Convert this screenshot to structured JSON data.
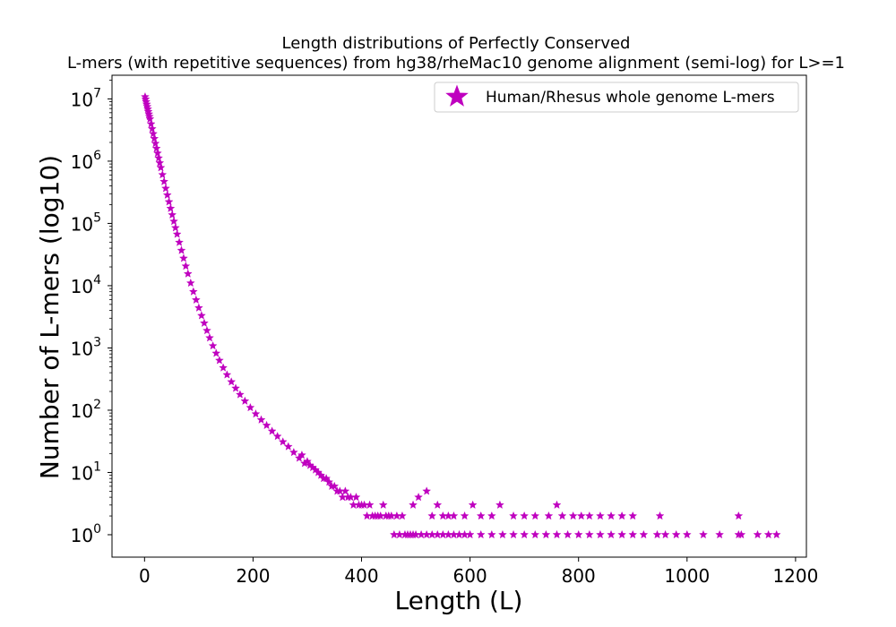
{
  "chart_data": {
    "type": "scatter",
    "title": [
      "Length distributions of Perfectly Conserved",
      "L-mers (with repetitive sequences) from hg38/rheMac10 genome alignment (semi-log) for L>=1"
    ],
    "xlabel": "Length (L)",
    "ylabel": "Number of L-mers (log10)",
    "xlim": [
      -60,
      1220
    ],
    "ylim_log10": [
      -0.36,
      7.38
    ],
    "y_scale": "log",
    "x_ticks": [
      0,
      200,
      400,
      600,
      800,
      1000,
      1200
    ],
    "y_tick_labels": [
      {
        "base": "10",
        "exp": "0"
      },
      {
        "base": "10",
        "exp": "1"
      },
      {
        "base": "10",
        "exp": "2"
      },
      {
        "base": "10",
        "exp": "3"
      },
      {
        "base": "10",
        "exp": "4"
      },
      {
        "base": "10",
        "exp": "5"
      },
      {
        "base": "10",
        "exp": "6"
      },
      {
        "base": "10",
        "exp": "7"
      }
    ],
    "grid": false,
    "legend_position": "top-right",
    "marker": "star",
    "color": "#bf00bf",
    "series": [
      {
        "name": "Human/Rhesus whole genome L-mers",
        "points": [
          [
            1,
            10800000
          ],
          [
            2,
            9900000
          ],
          [
            3,
            9000000
          ],
          [
            4,
            8200000
          ],
          [
            5,
            7500000
          ],
          [
            6,
            6850000
          ],
          [
            7,
            6250000
          ],
          [
            8,
            5700000
          ],
          [
            9,
            5200000
          ],
          [
            10,
            4750000
          ],
          [
            12,
            3950000
          ],
          [
            14,
            3300000
          ],
          [
            16,
            2750000
          ],
          [
            18,
            2300000
          ],
          [
            20,
            1920000
          ],
          [
            22,
            1600000
          ],
          [
            24,
            1340000
          ],
          [
            26,
            1120000
          ],
          [
            28,
            935000
          ],
          [
            30,
            785000
          ],
          [
            33,
            605000
          ],
          [
            36,
            470000
          ],
          [
            39,
            365000
          ],
          [
            42,
            285000
          ],
          [
            45,
            222000
          ],
          [
            48,
            174000
          ],
          [
            51,
            137000
          ],
          [
            54,
            108000
          ],
          [
            57,
            85000
          ],
          [
            60,
            67000
          ],
          [
            64,
            49500
          ],
          [
            68,
            36800
          ],
          [
            72,
            27500
          ],
          [
            76,
            20600
          ],
          [
            80,
            15500
          ],
          [
            85,
            11000
          ],
          [
            90,
            8000
          ],
          [
            95,
            5900
          ],
          [
            100,
            4400
          ],
          [
            105,
            3300
          ],
          [
            110,
            2500
          ],
          [
            115,
            1900
          ],
          [
            120,
            1450
          ],
          [
            126,
            1080
          ],
          [
            132,
            820
          ],
          [
            138,
            630
          ],
          [
            145,
            480
          ],
          [
            152,
            370
          ],
          [
            160,
            285
          ],
          [
            168,
            225
          ],
          [
            176,
            178
          ],
          [
            185,
            140
          ],
          [
            195,
            110
          ],
          [
            205,
            87
          ],
          [
            215,
            70
          ],
          [
            225,
            57
          ],
          [
            235,
            46
          ],
          [
            245,
            38
          ],
          [
            255,
            31
          ],
          [
            265,
            26
          ],
          [
            275,
            21
          ],
          [
            285,
            17
          ],
          [
            290,
            19
          ],
          [
            295,
            14
          ],
          [
            300,
            15
          ],
          [
            305,
            13
          ],
          [
            310,
            12
          ],
          [
            315,
            11
          ],
          [
            320,
            10
          ],
          [
            325,
            9
          ],
          [
            330,
            8
          ],
          [
            335,
            8
          ],
          [
            340,
            7
          ],
          [
            345,
            6
          ],
          [
            350,
            6
          ],
          [
            355,
            5
          ],
          [
            360,
            5
          ],
          [
            365,
            4
          ],
          [
            370,
            5
          ],
          [
            375,
            4
          ],
          [
            380,
            4
          ],
          [
            385,
            3
          ],
          [
            390,
            4
          ],
          [
            395,
            3
          ],
          [
            400,
            3
          ],
          [
            405,
            3
          ],
          [
            410,
            2
          ],
          [
            415,
            3
          ],
          [
            420,
            2
          ],
          [
            425,
            2
          ],
          [
            430,
            2
          ],
          [
            435,
            2
          ],
          [
            440,
            3
          ],
          [
            445,
            2
          ],
          [
            450,
            2
          ],
          [
            455,
            2
          ],
          [
            460,
            1
          ],
          [
            465,
            2
          ],
          [
            470,
            1
          ],
          [
            475,
            2
          ],
          [
            480,
            1
          ],
          [
            485,
            1
          ],
          [
            490,
            1
          ],
          [
            495,
            1
          ],
          [
            500,
            1
          ],
          [
            510,
            1
          ],
          [
            520,
            1
          ],
          [
            530,
            1
          ],
          [
            540,
            1
          ],
          [
            550,
            1
          ],
          [
            560,
            1
          ],
          [
            570,
            1
          ],
          [
            580,
            1
          ],
          [
            590,
            1
          ],
          [
            600,
            1
          ],
          [
            620,
            1
          ],
          [
            640,
            1
          ],
          [
            660,
            1
          ],
          [
            680,
            1
          ],
          [
            700,
            1
          ],
          [
            720,
            1
          ],
          [
            740,
            1
          ],
          [
            760,
            1
          ],
          [
            780,
            1
          ],
          [
            800,
            1
          ],
          [
            820,
            1
          ],
          [
            840,
            1
          ],
          [
            860,
            1
          ],
          [
            880,
            1
          ],
          [
            900,
            1
          ],
          [
            920,
            1
          ],
          [
            945,
            1
          ],
          [
            960,
            1
          ],
          [
            980,
            1
          ],
          [
            1000,
            1
          ],
          [
            1030,
            1
          ],
          [
            1060,
            1
          ],
          [
            1095,
            1
          ],
          [
            1100,
            1
          ],
          [
            1130,
            1
          ],
          [
            1150,
            1
          ],
          [
            1165,
            1
          ],
          [
            495,
            3
          ],
          [
            505,
            4
          ],
          [
            520,
            5
          ],
          [
            530,
            2
          ],
          [
            540,
            3
          ],
          [
            550,
            2
          ],
          [
            560,
            2
          ],
          [
            570,
            2
          ],
          [
            590,
            2
          ],
          [
            605,
            3
          ],
          [
            620,
            2
          ],
          [
            640,
            2
          ],
          [
            655,
            3
          ],
          [
            680,
            2
          ],
          [
            700,
            2
          ],
          [
            720,
            2
          ],
          [
            745,
            2
          ],
          [
            760,
            3
          ],
          [
            770,
            2
          ],
          [
            790,
            2
          ],
          [
            805,
            2
          ],
          [
            820,
            2
          ],
          [
            840,
            2
          ],
          [
            860,
            2
          ],
          [
            880,
            2
          ],
          [
            900,
            2
          ],
          [
            950,
            2
          ],
          [
            1095,
            2
          ]
        ]
      }
    ]
  }
}
